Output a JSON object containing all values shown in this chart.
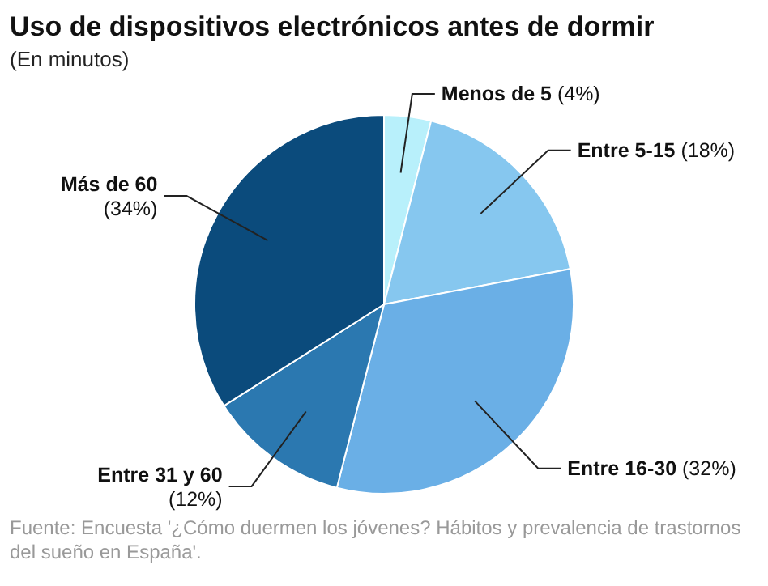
{
  "chart_data": {
    "type": "pie",
    "title": "Uso de dispositivos electrónicos antes de dormir",
    "subtitle": "(En minutos)",
    "categories": [
      "Menos de 5",
      "Entre 5-15",
      "Entre 16-30",
      "Entre 31 y 60",
      "Más de 60"
    ],
    "values": [
      4,
      18,
      32,
      12,
      34
    ],
    "colors": [
      "#b8f0fb",
      "#86c7ef",
      "#6aafe6",
      "#2b78b0",
      "#0b4b7c"
    ],
    "value_labels": [
      "(4%)",
      "(18%)",
      "(32%)",
      "(12%)",
      "(34%)"
    ],
    "annotations": [
      "Fuente: Encuesta '¿Cómo duermen los jóvenes? Hábitos y prevalencia de trastornos del sueño en España'."
    ]
  }
}
